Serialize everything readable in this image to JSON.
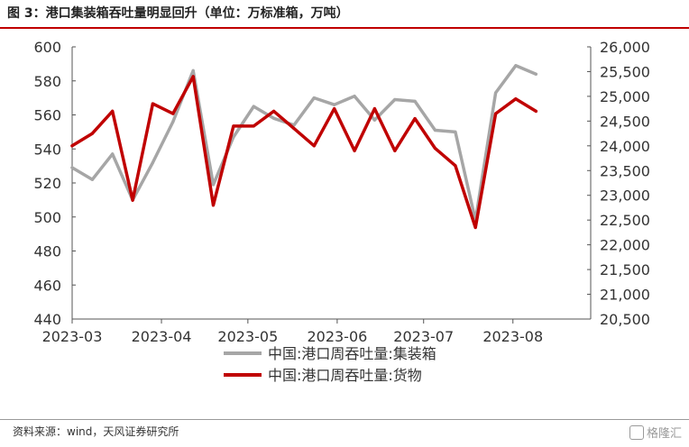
{
  "header": {
    "title": "图 3：港口集装箱吞吐量明显回升（单位：万标准箱，万吨）"
  },
  "footer": {
    "source": "资料来源：wind，天风证券研究所",
    "watermark": "格隆汇"
  },
  "chart_data": {
    "type": "line",
    "title": "图 3：港口集装箱吞吐量明显回升（单位：万标准箱，万吨）",
    "x_ticks": [
      "2023-03",
      "2023-04",
      "2023-05",
      "2023-06",
      "2023-07",
      "2023-08"
    ],
    "x_range": [
      "2023-03-01",
      "2023-08-28"
    ],
    "y_left": {
      "range": [
        440,
        600
      ],
      "ticks": [
        "440",
        "460",
        "480",
        "500",
        "520",
        "540",
        "560",
        "580",
        "600"
      ]
    },
    "y_right": {
      "range": [
        20500,
        26000
      ],
      "ticks": [
        "20,500",
        "21,000",
        "21,500",
        "22,000",
        "22,500",
        "23,000",
        "23,500",
        "24,000",
        "24,500",
        "25,000",
        "25,500",
        "26,000"
      ]
    },
    "grid": false,
    "legend": "bottom",
    "series": [
      {
        "name": "中国:港口周吞吐量:集装箱",
        "axis": "left",
        "color": "#a6a6a6",
        "points": [
          [
            "2023-03-01",
            529
          ],
          [
            "2023-03-08",
            522
          ],
          [
            "2023-03-15",
            537
          ],
          [
            "2023-03-22",
            510
          ],
          [
            "2023-03-29",
            532
          ],
          [
            "2023-04-05",
            556
          ],
          [
            "2023-04-12",
            586
          ],
          [
            "2023-04-19",
            519
          ],
          [
            "2023-04-26",
            547
          ],
          [
            "2023-05-03",
            565
          ],
          [
            "2023-05-10",
            558
          ],
          [
            "2023-05-17",
            554
          ],
          [
            "2023-05-24",
            570
          ],
          [
            "2023-05-31",
            566
          ],
          [
            "2023-06-07",
            571
          ],
          [
            "2023-06-14",
            557
          ],
          [
            "2023-06-21",
            569
          ],
          [
            "2023-06-28",
            568
          ],
          [
            "2023-07-05",
            551
          ],
          [
            "2023-07-12",
            550
          ],
          [
            "2023-07-19",
            498
          ],
          [
            "2023-07-26",
            573
          ],
          [
            "2023-08-02",
            589
          ],
          [
            "2023-08-09",
            584
          ]
        ]
      },
      {
        "name": "中国:港口周吞吐量:货物",
        "axis": "right",
        "color": "#c00000",
        "points": [
          [
            "2023-03-01",
            24000
          ],
          [
            "2023-03-08",
            24250
          ],
          [
            "2023-03-15",
            24700
          ],
          [
            "2023-03-22",
            22900
          ],
          [
            "2023-03-29",
            24850
          ],
          [
            "2023-04-05",
            24650
          ],
          [
            "2023-04-12",
            25400
          ],
          [
            "2023-04-19",
            22800
          ],
          [
            "2023-04-26",
            24400
          ],
          [
            "2023-05-03",
            24400
          ],
          [
            "2023-05-10",
            24700
          ],
          [
            "2023-05-17",
            24350
          ],
          [
            "2023-05-24",
            24000
          ],
          [
            "2023-05-31",
            24750
          ],
          [
            "2023-06-07",
            23900
          ],
          [
            "2023-06-14",
            24750
          ],
          [
            "2023-06-21",
            23900
          ],
          [
            "2023-06-28",
            24550
          ],
          [
            "2023-07-05",
            23950
          ],
          [
            "2023-07-12",
            23600
          ],
          [
            "2023-07-19",
            22350
          ],
          [
            "2023-07-26",
            24650
          ],
          [
            "2023-08-02",
            24950
          ],
          [
            "2023-08-09",
            24700
          ]
        ]
      }
    ]
  }
}
